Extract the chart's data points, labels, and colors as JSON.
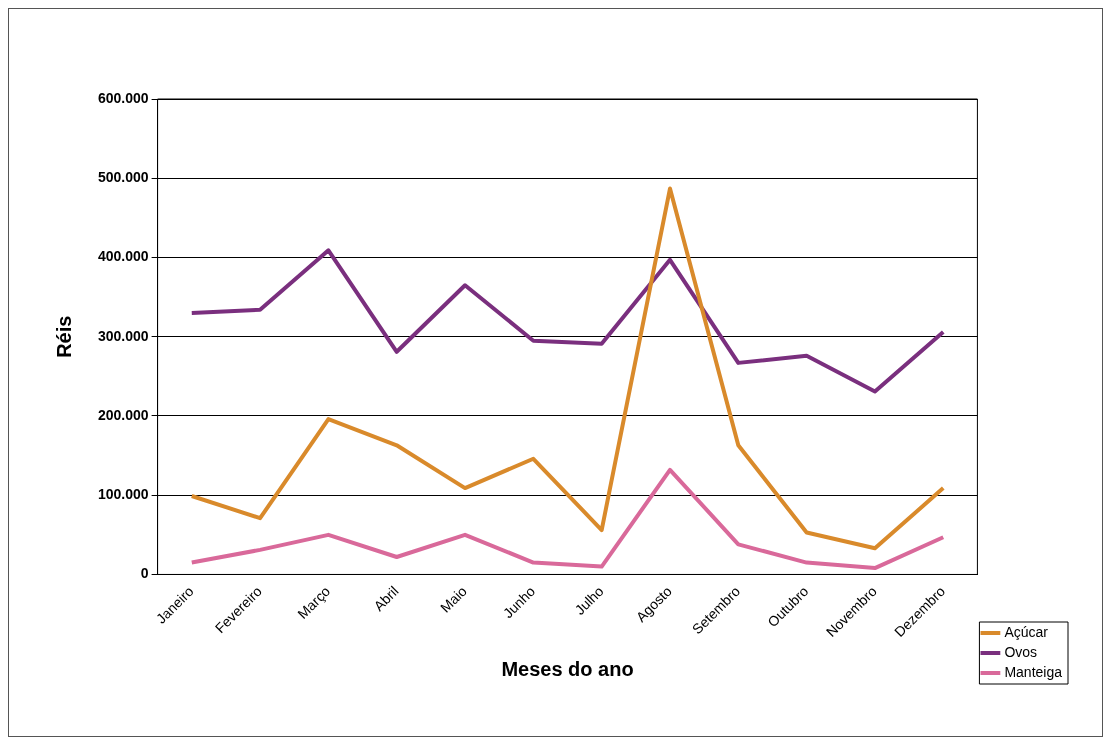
{
  "chart_data": {
    "type": "line",
    "xlabel": "Meses do ano",
    "ylabel": "Réis",
    "categories": [
      "Janeiro",
      "Fevereiro",
      "Março",
      "Abril",
      "Maio",
      "Junho",
      "Julho",
      "Agosto",
      "Setembro",
      "Outubro",
      "Novembro",
      "Dezembro"
    ],
    "series": [
      {
        "name": "Açúcar",
        "color": "#d98a2b",
        "values": [
          99000,
          71000,
          196000,
          163000,
          109000,
          146000,
          56000,
          487000,
          163000,
          53000,
          33000,
          109000
        ]
      },
      {
        "name": "Ovos",
        "color": "#7a2f7e",
        "values": [
          330000,
          334000,
          409000,
          281000,
          365000,
          295000,
          291000,
          397000,
          267000,
          276000,
          231000,
          306000
        ]
      },
      {
        "name": "Manteiga",
        "color": "#d9699a",
        "values": [
          15000,
          31000,
          50000,
          22000,
          50000,
          15000,
          10000,
          132000,
          38000,
          15000,
          8000,
          47000
        ]
      }
    ],
    "ylim": [
      0,
      600000
    ],
    "yticks": [
      0,
      {
        "value": 100000,
        "label": "100.000"
      },
      {
        "value": 200000,
        "label": "200.000"
      },
      {
        "value": 300000,
        "label": "300.000"
      },
      {
        "value": 400000,
        "label": "400.000"
      },
      {
        "value": 500000,
        "label": "500.000"
      },
      {
        "value": 600000,
        "label": "600.000"
      }
    ],
    "grid": "y",
    "legend": "bottom right",
    "marker": "none",
    "line_style": "solid"
  }
}
